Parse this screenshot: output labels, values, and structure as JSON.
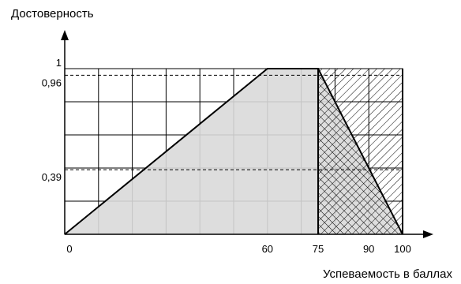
{
  "chart_data": {
    "type": "area",
    "title": "",
    "ylabel": "Достоверность",
    "xlabel": "Успеваемость в баллах",
    "xlim": [
      0,
      100
    ],
    "ylim": [
      0,
      1
    ],
    "x_tick_labels": [
      "0",
      "60",
      "75",
      "90",
      "100"
    ],
    "y_tick_labels": [
      "1",
      "0,96",
      "0,39"
    ],
    "grid": true,
    "series": [
      {
        "fill": "gray",
        "points": [
          [
            0,
            0
          ],
          [
            60,
            1
          ],
          [
            75,
            1
          ],
          [
            100,
            0
          ]
        ]
      },
      {
        "fill": "hatch",
        "points": [
          [
            75,
            1
          ],
          [
            100,
            1
          ],
          [
            100,
            0
          ]
        ]
      },
      {
        "fill": "crosshatch",
        "points": [
          [
            75,
            1
          ],
          [
            75,
            0
          ],
          [
            100,
            0
          ]
        ]
      }
    ],
    "reference_lines": [
      0.96,
      0.39
    ],
    "colors": {
      "line": "#000000",
      "area": "#d9d9d9",
      "grid": "#000000"
    }
  }
}
